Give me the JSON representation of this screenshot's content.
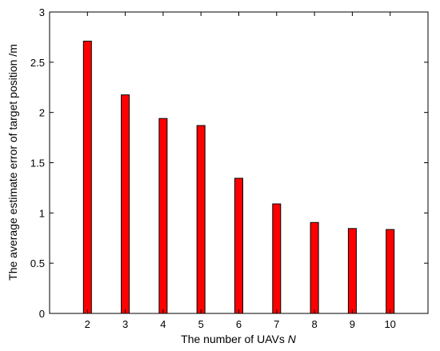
{
  "chart_data": {
    "type": "bar",
    "categories": [
      "2",
      "3",
      "4",
      "5",
      "6",
      "7",
      "8",
      "9",
      "10"
    ],
    "values": [
      2.71,
      2.175,
      1.94,
      1.87,
      1.345,
      1.09,
      0.905,
      0.845,
      0.835
    ],
    "title": "",
    "xlabel": "The number of UAVs",
    "xlabel_var": "N",
    "ylabel": "The average estimate error of target position /m",
    "ylim": [
      0,
      3
    ],
    "yticks": [
      "0",
      "0.5",
      "1",
      "1.5",
      "2",
      "2.5",
      "3"
    ],
    "xlim": [
      1,
      11
    ],
    "grid": false,
    "bar_color": "#ff0000",
    "bar_edge_color": "#000000"
  }
}
